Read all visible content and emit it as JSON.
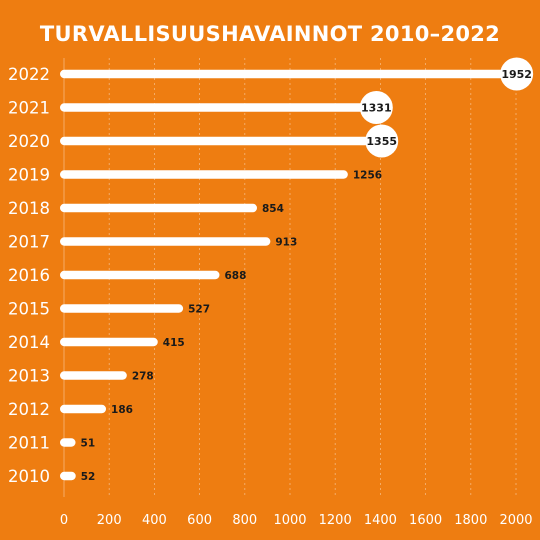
{
  "chart_data": {
    "type": "bar",
    "orientation": "horizontal",
    "title": "TURVALLISUUSHAVAINNOT 2010–2022",
    "categories": [
      "2022",
      "2021",
      "2020",
      "2019",
      "2018",
      "2017",
      "2016",
      "2015",
      "2014",
      "2013",
      "2012",
      "2011",
      "2010"
    ],
    "values": [
      1952,
      1331,
      1355,
      1256,
      854,
      913,
      688,
      527,
      415,
      278,
      186,
      51,
      52
    ],
    "xlim": [
      0,
      2000
    ],
    "x_ticks": [
      0,
      200,
      400,
      600,
      800,
      1000,
      1200,
      1400,
      1600,
      1800,
      2000
    ],
    "grid": true,
    "highlighted_labels": [
      "2022",
      "2021",
      "2020"
    ],
    "colors": {
      "background": "#EE7D11",
      "bar": "#FFFFFF",
      "text": "#FFFFFF",
      "value_label": "#1A1A1A",
      "grid": "#F6B77C"
    }
  }
}
